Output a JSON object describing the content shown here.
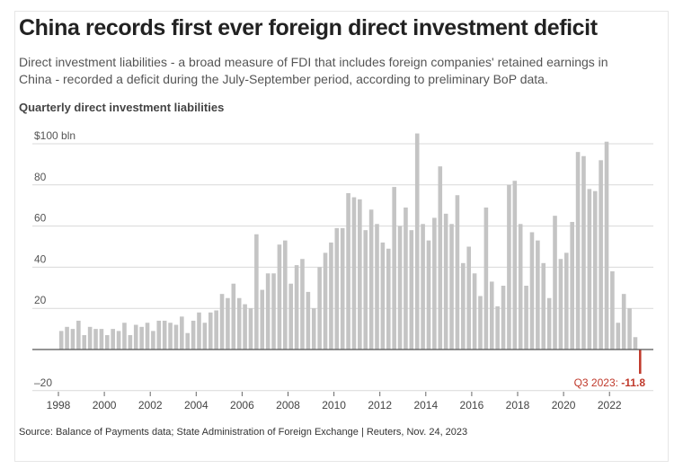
{
  "header": {
    "title": "China records first ever foreign direct investment deficit",
    "subtitle": "Direct investment liabilities - a broad measure of FDI that includes foreign companies' retained earnings in China - recorded a deficit during the July-September period, according to preliminary BoP data.",
    "chart_label": "Quarterly direct investment liabilities"
  },
  "footer": {
    "source": "Source: Balance of Payments data; State Administration of Foreign Exchange | Reuters, Nov. 24, 2023"
  },
  "colors": {
    "bar": "#c4c4c4",
    "negative": "#c0392b",
    "grid": "#d9d9d9",
    "axis": "#555555"
  },
  "chart_data": {
    "type": "bar",
    "title": "Quarterly direct investment liabilities",
    "ylabel": "$ bln",
    "ylim": [
      -20,
      100
    ],
    "yticks": [
      100,
      80,
      60,
      40,
      20,
      -20
    ],
    "ytick_labels": [
      "$100 bln",
      "80",
      "60",
      "40",
      "20",
      "–20"
    ],
    "xticks": [
      "1998",
      "2000",
      "2002",
      "2004",
      "2006",
      "2008",
      "2010",
      "2012",
      "2014",
      "2016",
      "2018",
      "2020",
      "2022"
    ],
    "first_quarter": "1998 Q1",
    "values": [
      9,
      11,
      10,
      14,
      7,
      11,
      10,
      10,
      7,
      10,
      9,
      13,
      7,
      12,
      11,
      13,
      9,
      14,
      14,
      13,
      12,
      16,
      8,
      14,
      18,
      13,
      18,
      19,
      27,
      25,
      32,
      25,
      22,
      20,
      56,
      29,
      37,
      37,
      51,
      53,
      32,
      41,
      44,
      28,
      20,
      40,
      47,
      52,
      59,
      59,
      76,
      74,
      73,
      58,
      68,
      61,
      52,
      49,
      79,
      60,
      69,
      58,
      105,
      61,
      53,
      64,
      89,
      66,
      61,
      75,
      42,
      50,
      37,
      26,
      69,
      33,
      21,
      31,
      80,
      82,
      61,
      31,
      57,
      53,
      42,
      25,
      65,
      44,
      47,
      62,
      96,
      94,
      78,
      77,
      92,
      101,
      38,
      13,
      27,
      20,
      6,
      -11.8
    ],
    "annotation": {
      "label": "Q3 2023: ",
      "value": "-11.8"
    }
  }
}
